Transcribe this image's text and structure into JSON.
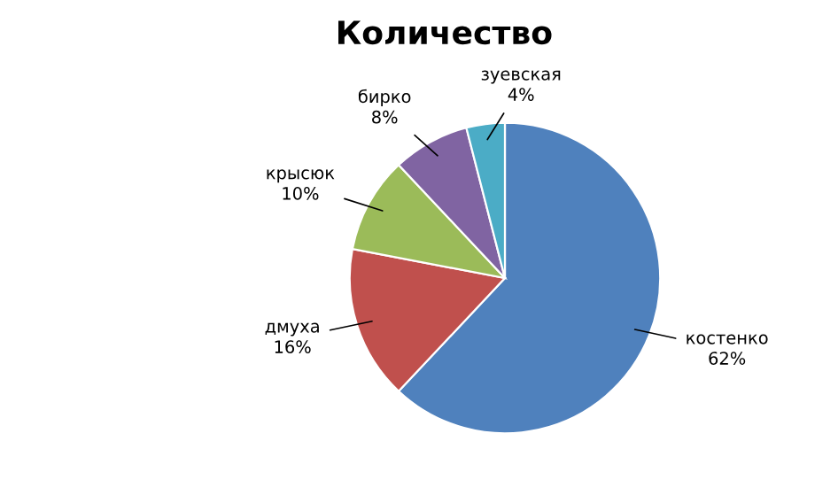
{
  "chart_data": {
    "type": "pie",
    "title": "Количество",
    "categories": [
      "костенко",
      "дмуха",
      "крысюк",
      "бирко",
      "зуевская"
    ],
    "values": [
      62,
      16,
      10,
      8,
      4
    ],
    "value_labels": [
      "62%",
      "16%",
      "10%",
      "8%",
      "4%"
    ],
    "colors": [
      "#4f81bd",
      "#c0504d",
      "#9bbb59",
      "#8064a2",
      "#4bacc6"
    ],
    "legend": false
  }
}
